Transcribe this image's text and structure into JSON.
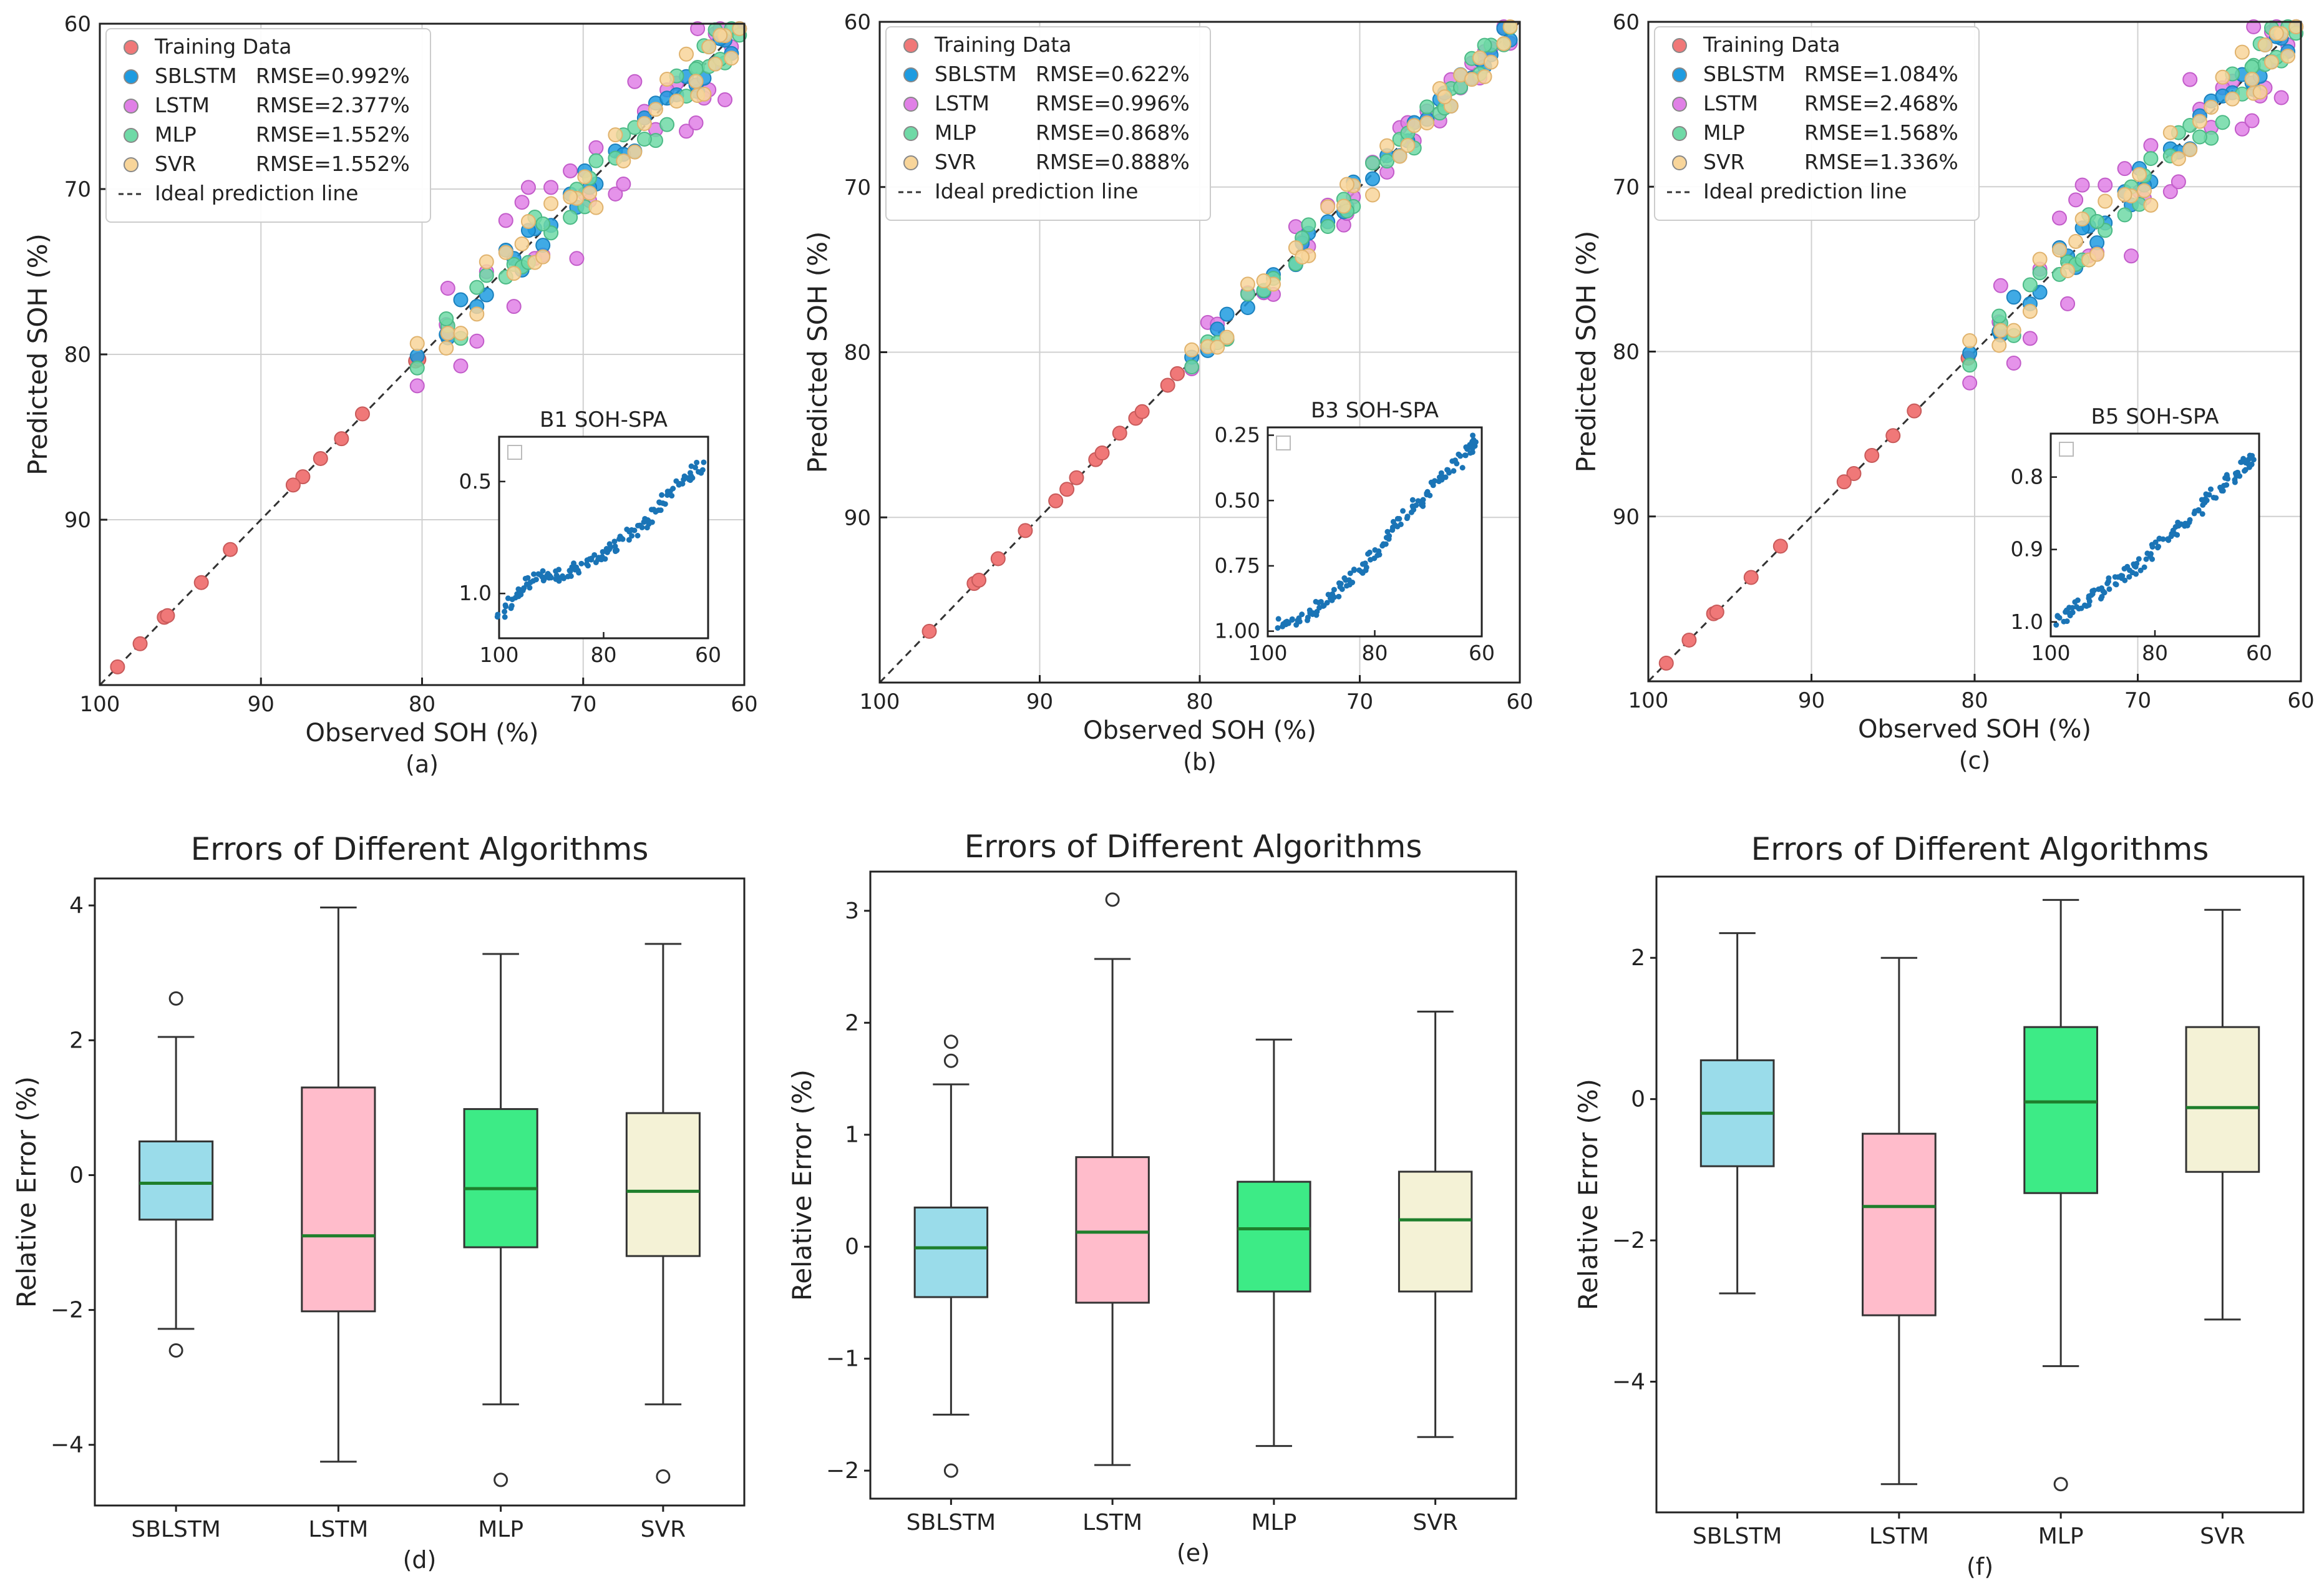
{
  "colors": {
    "training": "#F07878",
    "sblstm": "#1E9BE0",
    "lstm": "#E080E6",
    "mlp": "#6FD9A6",
    "svr": "#F8D59A",
    "inset": "#1A74B6",
    "box_sblstm": "#9ADCEA",
    "box_lstm": "#FFBCCB",
    "box_mlp": "#3DEB86",
    "box_svr": "#F4F2D6",
    "median": "#1E7F2C",
    "grid": "#d0d0d0",
    "ideal": "#333333"
  },
  "icons": {
    "legend_marker": "circle-marker-icon",
    "ideal_marker": "dashed-line-icon"
  },
  "chart_data": [
    {
      "id": "a",
      "type": "scatter",
      "caption": "(a)",
      "xlabel": "Observed SOH (%)",
      "ylabel": "Predicted SOH (%)",
      "xlim": [
        100,
        60
      ],
      "ylim": [
        100,
        60
      ],
      "xticks": [
        100,
        90,
        80,
        70,
        60
      ],
      "yticks": [
        60,
        70,
        80,
        90
      ],
      "grid": true,
      "legend_position": "top-left",
      "legend": [
        {
          "key": "training",
          "name": "Training Data",
          "rmse": ""
        },
        {
          "key": "sblstm",
          "name": "SBLSTM",
          "rmse": "RMSE=0.992%"
        },
        {
          "key": "lstm",
          "name": "LSTM",
          "rmse": "RMSE=2.377%"
        },
        {
          "key": "mlp",
          "name": "MLP",
          "rmse": "RMSE=1.552%"
        },
        {
          "key": "svr",
          "name": "SVR",
          "rmse": "RMSE=1.552%"
        },
        {
          "key": "ideal",
          "name": "Ideal prediction line",
          "rmse": ""
        }
      ],
      "training": [
        [
          98.9,
          98.9
        ],
        [
          97.5,
          97.5
        ],
        [
          96,
          95.9
        ],
        [
          95.8,
          95.8
        ],
        [
          93.7,
          93.8
        ],
        [
          91.9,
          91.8
        ],
        [
          87.4,
          87.4
        ],
        [
          88,
          87.9
        ],
        [
          86.3,
          86.3
        ],
        [
          85,
          85.1
        ],
        [
          83.7,
          83.6
        ],
        [
          80.4,
          80.4
        ],
        [
          80.2,
          80.3
        ]
      ],
      "lstm_dev": [
        1.6,
        -2.4,
        3.1,
        -1.0,
        2.8,
        -3.0,
        1.2,
        -2.1,
        3.8,
        0.4,
        -1.7,
        2.3,
        -3.3,
        0.9,
        -0.6,
        2.9,
        -2.6,
        1.8,
        -1.2,
        3.4,
        -0.3,
        -2.9,
        1.5,
        -1.9,
        2.2,
        -0.8,
        3.0,
        -2.2,
        0.6,
        -1.4,
        2.6,
        -3.5,
        1.1,
        -0.9,
        2.0
      ],
      "model_dev": [
        0.3,
        -0.5,
        0.8,
        -0.2,
        0.6,
        -0.9,
        0.4,
        -0.1,
        1.1,
        -0.6,
        0.2,
        0.7,
        -1.0,
        0.5,
        -0.3,
        0.9,
        -0.7,
        0.1,
        -0.4,
        1.2,
        -0.8,
        0.6,
        -0.2,
        0.3,
        -1.1,
        0.9,
        -0.5,
        0.4,
        -0.3,
        0.7,
        -0.6,
        1.0,
        -0.2,
        0.5,
        -0.9
      ],
      "test_x": [
        80.3,
        78.4,
        77.6,
        76,
        74.3,
        73.8,
        73,
        72,
        70.4,
        69.9,
        69.2,
        68,
        66.8,
        65.5,
        64.2,
        63.6,
        62.9,
        62.2,
        61.8,
        61.2,
        78.5,
        74.8,
        72.5,
        70.8,
        67.5,
        64.8,
        63,
        61.5,
        60.8,
        60.3,
        76.6,
        73.4,
        69.6,
        66.2,
        62.5
      ],
      "inset": {
        "title": "B1 SOH-SPA",
        "xlim": [
          100,
          60
        ],
        "ylim": [
          1.2,
          0.3
        ],
        "xticks": [
          100,
          80,
          60
        ],
        "yticks": [
          0.5,
          1.0
        ],
        "ytick_labels": [
          "0.5",
          "1.0"
        ],
        "curve": [
          [
            100,
            1.1
          ],
          [
            96,
            0.99
          ],
          [
            92,
            0.92
          ],
          [
            88,
            0.92
          ],
          [
            84,
            0.88
          ],
          [
            80,
            0.83
          ],
          [
            76,
            0.76
          ],
          [
            72,
            0.68
          ],
          [
            68,
            0.58
          ],
          [
            64,
            0.48
          ],
          [
            61,
            0.42
          ]
        ]
      }
    },
    {
      "id": "b",
      "type": "scatter",
      "caption": "(b)",
      "xlabel": "Observed SOH (%)",
      "ylabel": "Predicted SOH (%)",
      "xlim": [
        100,
        60
      ],
      "ylim": [
        100,
        60
      ],
      "xticks": [
        100,
        90,
        80,
        70,
        60
      ],
      "yticks": [
        60,
        70,
        80,
        90
      ],
      "grid": true,
      "legend_position": "top-left",
      "legend": [
        {
          "key": "training",
          "name": "Training Data",
          "rmse": ""
        },
        {
          "key": "sblstm",
          "name": "SBLSTM",
          "rmse": "RMSE=0.622%"
        },
        {
          "key": "lstm",
          "name": "LSTM",
          "rmse": "RMSE=0.996%"
        },
        {
          "key": "mlp",
          "name": "MLP",
          "rmse": "RMSE=0.868%"
        },
        {
          "key": "svr",
          "name": "SVR",
          "rmse": "RMSE=0.888%"
        },
        {
          "key": "ideal",
          "name": "Ideal prediction line",
          "rmse": ""
        }
      ],
      "training": [
        [
          96.9,
          96.9
        ],
        [
          94.1,
          94
        ],
        [
          93.8,
          93.8
        ],
        [
          92.6,
          92.5
        ],
        [
          90.9,
          90.8
        ],
        [
          89,
          89
        ],
        [
          88.3,
          88.3
        ],
        [
          87.7,
          87.6
        ],
        [
          86.5,
          86.5
        ],
        [
          86.1,
          86.1
        ],
        [
          85,
          84.9
        ],
        [
          84,
          84
        ],
        [
          83.6,
          83.6
        ],
        [
          82,
          82
        ],
        [
          81.4,
          81.3
        ]
      ],
      "lstm_dev": [
        0.5,
        -1.3,
        0.9,
        -0.6,
        1.1,
        -1.6,
        0.4,
        -0.9,
        1.3,
        0.2,
        -0.7,
        0.8,
        -1.1,
        0.6,
        -0.4,
        1.0,
        -0.8,
        0.3,
        -0.5,
        0.9,
        -0.2,
        -1.0,
        0.7,
        -0.6,
        0.4,
        -0.3,
        0.8,
        -0.9,
        0.5,
        -0.4
      ],
      "model_dev": [
        0.2,
        -0.4,
        0.5,
        -0.2,
        0.4,
        -0.6,
        0.3,
        -0.1,
        0.7,
        -0.4,
        0.1,
        0.5,
        -0.7,
        0.3,
        -0.2,
        0.6,
        -0.5,
        0.1,
        -0.3,
        0.8,
        -0.5,
        0.4,
        -0.2,
        0.2,
        -0.6,
        0.5,
        -0.3,
        0.3,
        -0.2,
        0.4
      ],
      "test_x": [
        80.5,
        79.5,
        78.3,
        77,
        75.4,
        74,
        73.2,
        72,
        71,
        70.4,
        69.2,
        68.3,
        67.5,
        66.6,
        65.8,
        65,
        64.3,
        63.7,
        63,
        62.5,
        61.8,
        61,
        60.6,
        78.9,
        76,
        73.6,
        70.8,
        67,
        64.7,
        62.2
      ],
      "inset": {
        "title": "B3 SOH-SPA",
        "xlim": [
          100,
          60
        ],
        "ylim": [
          1.02,
          0.22
        ],
        "xticks": [
          100,
          80,
          60
        ],
        "yticks": [
          0.25,
          0.5,
          0.75,
          1.0
        ],
        "ytick_labels": [
          "0.25",
          "0.50",
          "0.75",
          "1.00"
        ],
        "curve": [
          [
            98,
            0.98
          ],
          [
            94,
            0.95
          ],
          [
            90,
            0.9
          ],
          [
            86,
            0.83
          ],
          [
            82,
            0.75
          ],
          [
            78,
            0.64
          ],
          [
            74,
            0.55
          ],
          [
            70,
            0.47
          ],
          [
            66,
            0.39
          ],
          [
            62,
            0.3
          ],
          [
            61,
            0.27
          ]
        ]
      }
    },
    {
      "id": "c",
      "type": "scatter",
      "caption": "(c)",
      "xlabel": "Observed SOH (%)",
      "ylabel": "Predicted SOH (%)",
      "xlim": [
        100,
        60
      ],
      "ylim": [
        100,
        60
      ],
      "xticks": [
        100,
        90,
        80,
        70,
        60
      ],
      "yticks": [
        60,
        70,
        80,
        90
      ],
      "grid": true,
      "legend_position": "top-left",
      "legend": [
        {
          "key": "training",
          "name": "Training Data",
          "rmse": ""
        },
        {
          "key": "sblstm",
          "name": "SBLSTM",
          "rmse": "RMSE=1.084%"
        },
        {
          "key": "lstm",
          "name": "LSTM",
          "rmse": "RMSE=2.468%"
        },
        {
          "key": "mlp",
          "name": "MLP",
          "rmse": "RMSE=1.568%"
        },
        {
          "key": "svr",
          "name": "SVR",
          "rmse": "RMSE=1.336%"
        },
        {
          "key": "ideal",
          "name": "Ideal prediction line",
          "rmse": ""
        }
      ],
      "training": [
        [
          98.9,
          98.9
        ],
        [
          97.5,
          97.5
        ],
        [
          96,
          95.9
        ],
        [
          95.8,
          95.8
        ],
        [
          93.7,
          93.7
        ],
        [
          91.9,
          91.8
        ],
        [
          87.4,
          87.4
        ],
        [
          88,
          87.9
        ],
        [
          86.3,
          86.3
        ],
        [
          85,
          85.1
        ],
        [
          83.7,
          83.6
        ],
        [
          80.4,
          80.4
        ]
      ],
      "lstm_dev": [
        1.6,
        -2.4,
        3.1,
        -1.0,
        2.8,
        -3.0,
        1.2,
        -2.1,
        3.8,
        0.4,
        -1.7,
        2.3,
        -3.3,
        0.9,
        -0.6,
        2.9,
        -2.6,
        1.8,
        -1.2,
        3.4,
        -0.3,
        -2.9,
        1.5,
        -1.9,
        2.2,
        -0.8,
        3.0,
        -2.2,
        0.6,
        -1.4,
        2.6,
        -3.5,
        1.1,
        -0.9,
        2.0
      ],
      "model_dev": [
        0.3,
        -0.5,
        0.8,
        -0.2,
        0.6,
        -0.9,
        0.4,
        -0.1,
        1.1,
        -0.6,
        0.2,
        0.7,
        -1.0,
        0.5,
        -0.3,
        0.9,
        -0.7,
        0.1,
        -0.4,
        1.2,
        -0.8,
        0.6,
        -0.2,
        0.3,
        -1.1,
        0.9,
        -0.5,
        0.4,
        -0.3,
        0.7,
        -0.6,
        1.0,
        -0.2,
        0.5,
        -0.9
      ],
      "test_x": [
        80.3,
        78.4,
        77.6,
        76,
        74.3,
        73.8,
        73,
        72,
        70.4,
        69.9,
        69.2,
        68,
        66.8,
        65.5,
        64.2,
        63.6,
        62.9,
        62.2,
        61.8,
        61.2,
        78.5,
        74.8,
        72.5,
        70.8,
        67.5,
        64.8,
        63,
        61.5,
        60.8,
        60.3,
        76.6,
        73.4,
        69.6,
        66.2,
        62.5
      ],
      "inset": {
        "title": "B5 SOH-SPA",
        "xlim": [
          100,
          60
        ],
        "ylim": [
          1.02,
          0.74
        ],
        "xticks": [
          100,
          80,
          60
        ],
        "yticks": [
          0.8,
          0.9,
          1.0
        ],
        "ytick_labels": [
          "0.8",
          "0.9",
          "1.0"
        ],
        "curve": [
          [
            99,
            1.0
          ],
          [
            95,
            0.98
          ],
          [
            91,
            0.96
          ],
          [
            87,
            0.94
          ],
          [
            83,
            0.92
          ],
          [
            79,
            0.89
          ],
          [
            75,
            0.87
          ],
          [
            71,
            0.84
          ],
          [
            67,
            0.81
          ],
          [
            63,
            0.785
          ],
          [
            61,
            0.775
          ]
        ]
      }
    },
    {
      "id": "d",
      "type": "box",
      "caption": "(d)",
      "title": "Errors of Different Algorithms",
      "ylabel": "Relative Error (%)",
      "categories": [
        "SBLSTM",
        "LSTM",
        "MLP",
        "SVR"
      ],
      "ylim": [
        -4.9,
        4.4
      ],
      "yticks": [
        -4,
        -2,
        0,
        2,
        4
      ],
      "box_keys": [
        "box_sblstm",
        "box_lstm",
        "box_mlp",
        "box_svr"
      ],
      "boxes": [
        {
          "whislo": -2.28,
          "q1": -0.66,
          "med": -0.12,
          "q3": 0.5,
          "whishi": 2.05,
          "fliers": [
            2.62,
            -2.6
          ]
        },
        {
          "whislo": -4.25,
          "q1": -2.02,
          "med": -0.9,
          "q3": 1.3,
          "whishi": 3.97,
          "fliers": []
        },
        {
          "whislo": -3.4,
          "q1": -1.07,
          "med": -0.2,
          "q3": 0.98,
          "whishi": 3.28,
          "fliers": [
            -4.52
          ]
        },
        {
          "whislo": -3.4,
          "q1": -1.2,
          "med": -0.24,
          "q3": 0.92,
          "whishi": 3.43,
          "fliers": [
            -4.47
          ]
        }
      ]
    },
    {
      "id": "e",
      "type": "box",
      "caption": "(e)",
      "title": "Errors of Different Algorithms",
      "ylabel": "Relative Error (%)",
      "categories": [
        "SBLSTM",
        "LSTM",
        "MLP",
        "SVR"
      ],
      "ylim": [
        -2.25,
        3.35
      ],
      "yticks": [
        -2,
        -1,
        0,
        1,
        2,
        3
      ],
      "box_keys": [
        "box_sblstm",
        "box_lstm",
        "box_mlp",
        "box_svr"
      ],
      "boxes": [
        {
          "whislo": -1.5,
          "q1": -0.45,
          "med": -0.01,
          "q3": 0.35,
          "whishi": 1.45,
          "fliers": [
            1.83,
            1.66,
            -2.0
          ]
        },
        {
          "whislo": -1.95,
          "q1": -0.5,
          "med": 0.13,
          "q3": 0.8,
          "whishi": 2.57,
          "fliers": [
            3.1
          ]
        },
        {
          "whislo": -1.78,
          "q1": -0.4,
          "med": 0.16,
          "q3": 0.58,
          "whishi": 1.85,
          "fliers": []
        },
        {
          "whislo": -1.7,
          "q1": -0.4,
          "med": 0.24,
          "q3": 0.67,
          "whishi": 2.1,
          "fliers": []
        }
      ]
    },
    {
      "id": "f",
      "type": "box",
      "caption": "(f)",
      "title": "Errors of Different Algorithms",
      "ylabel": "Relative Error (%)",
      "categories": [
        "SBLSTM",
        "LSTM",
        "MLP",
        "SVR"
      ],
      "ylim": [
        -5.85,
        3.15
      ],
      "yticks": [
        -4,
        -2,
        0,
        2
      ],
      "box_keys": [
        "box_sblstm",
        "box_lstm",
        "box_mlp",
        "box_svr"
      ],
      "boxes": [
        {
          "whislo": -2.75,
          "q1": -0.95,
          "med": -0.2,
          "q3": 0.55,
          "whishi": 2.35,
          "fliers": []
        },
        {
          "whislo": -5.45,
          "q1": -3.06,
          "med": -1.52,
          "q3": -0.49,
          "whishi": 2.0,
          "fliers": []
        },
        {
          "whislo": -3.78,
          "q1": -1.33,
          "med": -0.04,
          "q3": 1.02,
          "whishi": 2.82,
          "fliers": [
            -5.45
          ]
        },
        {
          "whislo": -3.12,
          "q1": -1.03,
          "med": -0.12,
          "q3": 1.02,
          "whishi": 2.68,
          "fliers": []
        }
      ]
    }
  ]
}
